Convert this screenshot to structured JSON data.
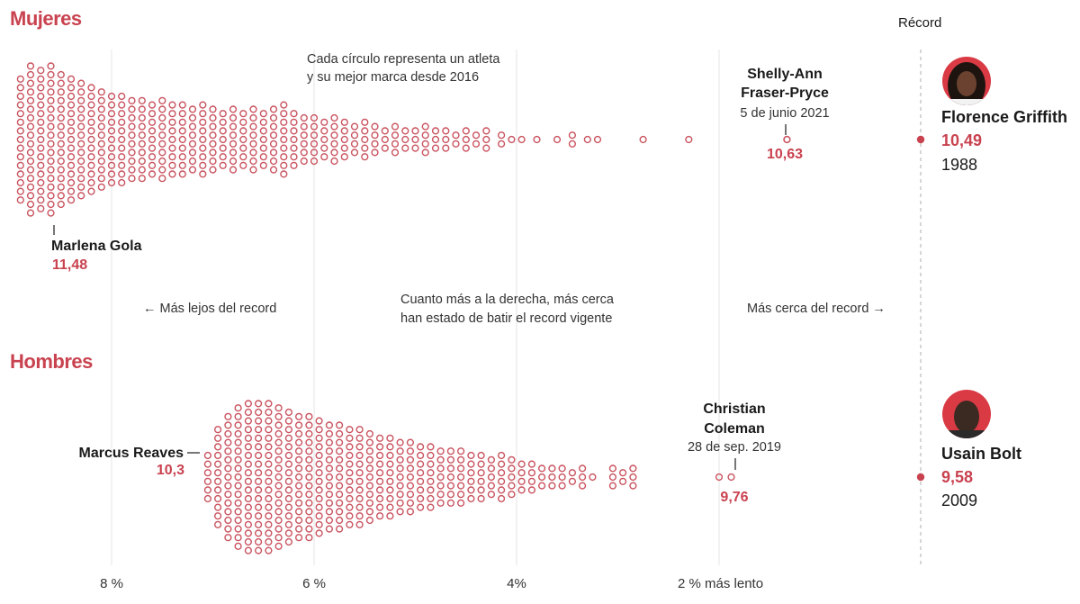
{
  "chart_data": [
    {
      "type": "beeswarm",
      "title": "Mujeres",
      "x_unit": "% más lento que el récord",
      "record": {
        "label": "Récord",
        "athlete": "Florence Griffith",
        "time": "10,49",
        "year": "1988"
      },
      "annotations": [
        {
          "athlete": "Shelly-Ann",
          "athlete_2": "Fraser-Pryce",
          "date": "5 de junio 2021",
          "time": "10,63"
        },
        {
          "athlete": "Marlena Gola",
          "time": "11,48"
        }
      ],
      "note": [
        "Cada círculo representa un atleta",
        "y su mejor marca desde 2016"
      ],
      "columns": [
        {
          "pct": 8.9,
          "n": 15
        },
        {
          "pct": 8.8,
          "n": 18
        },
        {
          "pct": 8.7,
          "n": 17
        },
        {
          "pct": 8.6,
          "n": 18
        },
        {
          "pct": 8.5,
          "n": 16
        },
        {
          "pct": 8.4,
          "n": 15
        },
        {
          "pct": 8.3,
          "n": 14
        },
        {
          "pct": 8.2,
          "n": 13
        },
        {
          "pct": 8.1,
          "n": 12
        },
        {
          "pct": 8.0,
          "n": 11
        },
        {
          "pct": 7.9,
          "n": 11
        },
        {
          "pct": 7.8,
          "n": 10
        },
        {
          "pct": 7.7,
          "n": 10
        },
        {
          "pct": 7.6,
          "n": 9
        },
        {
          "pct": 7.5,
          "n": 10
        },
        {
          "pct": 7.4,
          "n": 9
        },
        {
          "pct": 7.3,
          "n": 9
        },
        {
          "pct": 7.2,
          "n": 8
        },
        {
          "pct": 7.1,
          "n": 9
        },
        {
          "pct": 7.0,
          "n": 8
        },
        {
          "pct": 6.9,
          "n": 7
        },
        {
          "pct": 6.8,
          "n": 8
        },
        {
          "pct": 6.7,
          "n": 7
        },
        {
          "pct": 6.6,
          "n": 8
        },
        {
          "pct": 6.5,
          "n": 7
        },
        {
          "pct": 6.4,
          "n": 8
        },
        {
          "pct": 6.3,
          "n": 9
        },
        {
          "pct": 6.2,
          "n": 7
        },
        {
          "pct": 6.1,
          "n": 6
        },
        {
          "pct": 6.0,
          "n": 6
        },
        {
          "pct": 5.9,
          "n": 5
        },
        {
          "pct": 5.8,
          "n": 6
        },
        {
          "pct": 5.7,
          "n": 5
        },
        {
          "pct": 5.6,
          "n": 4
        },
        {
          "pct": 5.5,
          "n": 5
        },
        {
          "pct": 5.4,
          "n": 4
        },
        {
          "pct": 5.3,
          "n": 3
        },
        {
          "pct": 5.2,
          "n": 4
        },
        {
          "pct": 5.1,
          "n": 3
        },
        {
          "pct": 5.0,
          "n": 3
        },
        {
          "pct": 4.9,
          "n": 4
        },
        {
          "pct": 4.8,
          "n": 3
        },
        {
          "pct": 4.7,
          "n": 3
        },
        {
          "pct": 4.6,
          "n": 2
        },
        {
          "pct": 4.5,
          "n": 3
        },
        {
          "pct": 4.4,
          "n": 2
        },
        {
          "pct": 4.3,
          "n": 3
        },
        {
          "pct": 4.15,
          "n": 2
        },
        {
          "pct": 4.05,
          "n": 1
        },
        {
          "pct": 3.95,
          "n": 1
        },
        {
          "pct": 3.8,
          "n": 1
        },
        {
          "pct": 3.6,
          "n": 1
        },
        {
          "pct": 3.45,
          "n": 2
        },
        {
          "pct": 3.3,
          "n": 1
        },
        {
          "pct": 3.2,
          "n": 1
        },
        {
          "pct": 2.75,
          "n": 1
        },
        {
          "pct": 2.3,
          "n": 1
        },
        {
          "pct": 1.33,
          "n": 1
        }
      ]
    },
    {
      "type": "beeswarm",
      "title": "Hombres",
      "x_unit": "% más lento que el récord",
      "record": {
        "athlete": "Usain Bolt",
        "time": "9,58",
        "year": "2009"
      },
      "annotations": [
        {
          "athlete": "Christian",
          "athlete_2": "Coleman",
          "date": "28 de sep. 2019",
          "time": "9,76"
        },
        {
          "athlete": "Marcus Reaves",
          "time": "10,3"
        }
      ],
      "columns": [
        {
          "pct": 7.05,
          "n": 6
        },
        {
          "pct": 6.95,
          "n": 12
        },
        {
          "pct": 6.85,
          "n": 15
        },
        {
          "pct": 6.75,
          "n": 17
        },
        {
          "pct": 6.65,
          "n": 18
        },
        {
          "pct": 6.55,
          "n": 18
        },
        {
          "pct": 6.45,
          "n": 18
        },
        {
          "pct": 6.35,
          "n": 17
        },
        {
          "pct": 6.25,
          "n": 16
        },
        {
          "pct": 6.15,
          "n": 15
        },
        {
          "pct": 6.05,
          "n": 15
        },
        {
          "pct": 5.95,
          "n": 14
        },
        {
          "pct": 5.85,
          "n": 13
        },
        {
          "pct": 5.75,
          "n": 13
        },
        {
          "pct": 5.65,
          "n": 12
        },
        {
          "pct": 5.55,
          "n": 12
        },
        {
          "pct": 5.45,
          "n": 11
        },
        {
          "pct": 5.35,
          "n": 10
        },
        {
          "pct": 5.25,
          "n": 10
        },
        {
          "pct": 5.15,
          "n": 9
        },
        {
          "pct": 5.05,
          "n": 9
        },
        {
          "pct": 4.95,
          "n": 8
        },
        {
          "pct": 4.85,
          "n": 8
        },
        {
          "pct": 4.75,
          "n": 7
        },
        {
          "pct": 4.65,
          "n": 7
        },
        {
          "pct": 4.55,
          "n": 7
        },
        {
          "pct": 4.45,
          "n": 6
        },
        {
          "pct": 4.35,
          "n": 6
        },
        {
          "pct": 4.25,
          "n": 5
        },
        {
          "pct": 4.15,
          "n": 6
        },
        {
          "pct": 4.05,
          "n": 5
        },
        {
          "pct": 3.95,
          "n": 4
        },
        {
          "pct": 3.85,
          "n": 4
        },
        {
          "pct": 3.75,
          "n": 3
        },
        {
          "pct": 3.65,
          "n": 3
        },
        {
          "pct": 3.55,
          "n": 3
        },
        {
          "pct": 3.45,
          "n": 2
        },
        {
          "pct": 3.35,
          "n": 3
        },
        {
          "pct": 3.25,
          "n": 1
        },
        {
          "pct": 3.05,
          "n": 3
        },
        {
          "pct": 2.95,
          "n": 2
        },
        {
          "pct": 2.85,
          "n": 3
        },
        {
          "pct": 2.0,
          "n": 1
        },
        {
          "pct": 1.88,
          "n": 1
        }
      ]
    }
  ],
  "axis": {
    "ticks": [
      {
        "pct": 8,
        "label": "8 %"
      },
      {
        "pct": 6,
        "label": "6 %"
      },
      {
        "pct": 4,
        "label": "4%"
      },
      {
        "pct": 2,
        "label": "2 % más lento"
      }
    ],
    "range": [
      9,
      0
    ]
  },
  "center_note": [
    "Cuanto más a la derecha, más cerca",
    "han estado de batir el record vigente"
  ],
  "left_hint": "← Más lejos del record",
  "right_hint": "Más cerca del record →",
  "colors": {
    "accent": "#c9424f",
    "dot": "#c9535f"
  }
}
